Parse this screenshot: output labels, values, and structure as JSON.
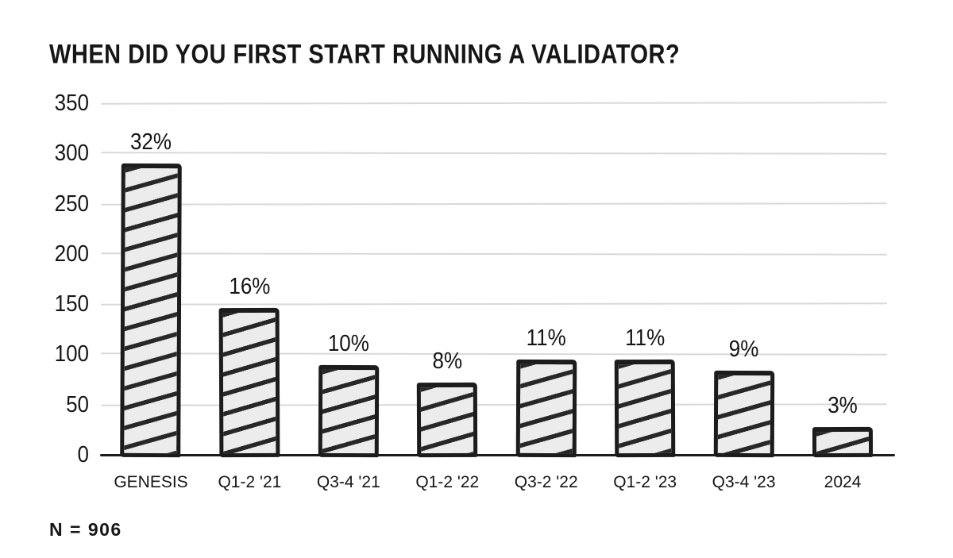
{
  "chart_data": {
    "type": "bar",
    "title": "WHEN DID YOU FIRST START RUNNING A VALIDATOR?",
    "footnote": "N = 906",
    "categories": [
      "GENESIS",
      "Q1-2 '21",
      "Q3-4 '21",
      "Q1-2 '22",
      "Q3-2 '22",
      "Q1-2 '23",
      "Q3-4 '23",
      "2024"
    ],
    "bar_labels": [
      "32%",
      "16%",
      "10%",
      "8%",
      "11%",
      "11%",
      "9%",
      "3%"
    ],
    "values_pct": [
      32,
      16,
      10,
      8,
      11,
      11,
      9,
      3
    ],
    "approx_counts": [
      290,
      146,
      89,
      72,
      95,
      95,
      84,
      28
    ],
    "sample_size": 906,
    "xlabel": "",
    "ylabel": "",
    "ylim": [
      0,
      350
    ],
    "yticks": [
      0,
      50,
      100,
      150,
      200,
      250,
      300,
      350
    ],
    "grid": "horizontal",
    "legend": "none",
    "style": "hand-drawn sketch, diagonal-hatched bars",
    "colors": {
      "background": "#ffffff",
      "bar_fill": "#ececec",
      "bar_hatch": "#272727",
      "bar_border": "#1c1c1c",
      "gridline": "#d9d9d9",
      "axis_line": "#1b1b1b",
      "text": "#161616"
    }
  }
}
